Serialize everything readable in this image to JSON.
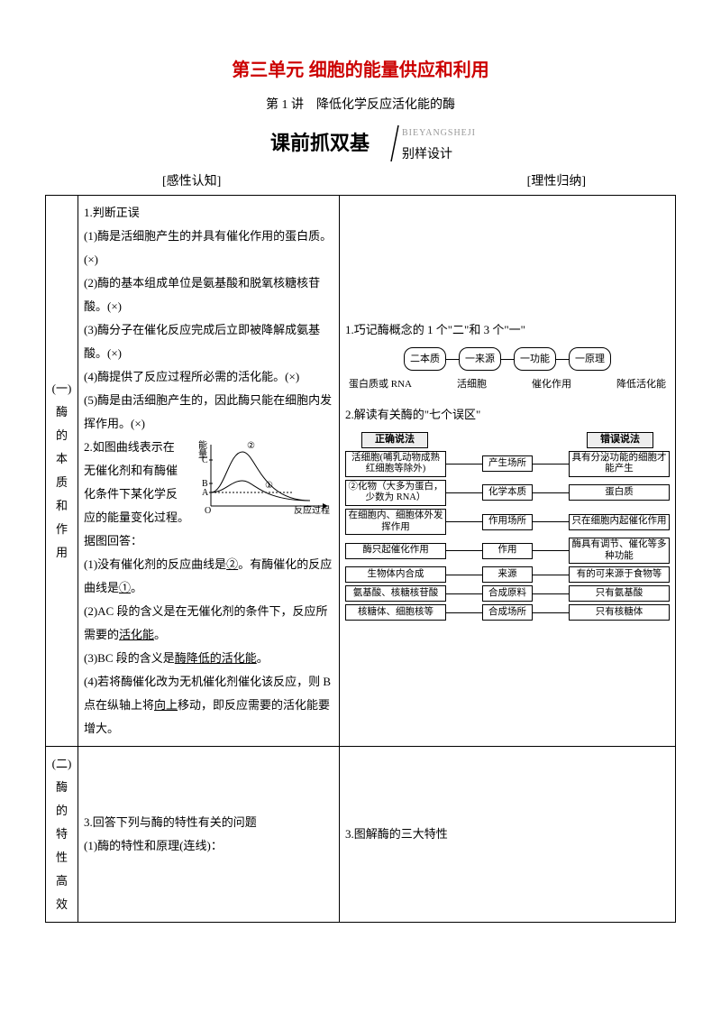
{
  "title": "第三单元  细胞的能量供应和利用",
  "subtitle": "第 1 讲　降低化学反应活化能的酶",
  "banner": {
    "main": "课前抓双基",
    "pinyin": "BIEYANGSHEJI",
    "sub": "别样设计"
  },
  "headers": {
    "left": "[感性认知]",
    "right": "[理性归纳]"
  },
  "row1": {
    "label": "(一)酶的本质和作用",
    "left": {
      "l1": "1.判断正误",
      "q1": "(1)酶是活细胞产生的并具有催化作用的蛋白质。(×)",
      "q2": "(2)酶的基本组成单位是氨基酸和脱氧核糖核苷酸。(×)",
      "q3": "(3)酶分子在催化反应完成后立即被降解成氨基酸。(×)",
      "q4": "(4)酶提供了反应过程所必需的活化能。(×)",
      "q5": "(5)酶是由活细胞产生的，因此酶只能在细胞内发挥作用。(×)",
      "l2a": "2.如图曲线表示在",
      "l2b": "无催化剂和有酶催",
      "l2c": "化条件下某化学反",
      "l2d": "应的能量变化过程。",
      "l3": "据图回答：",
      "a1a": "(1)没有催化剂的反应曲线是",
      "a1u": "②",
      "a1b": "。有酶催化的反应曲线是",
      "a1v": "①",
      "a1c": "。",
      "a2a": "(2)AC 段的含义是在无催化剂的条件下，反应所需要的",
      "a2u": "活化能",
      "a2b": "。",
      "a3a": "(3)BC 段的含义是",
      "a3u": "酶降低的活化能",
      "a3b": "。",
      "a4a": "(4)若将酶催化改为无机催化剂催化该反应，则 B 点在纵轴上将",
      "a4u": "向上",
      "a4b": "移动，即反应需要的活化能要增大。",
      "chart": {
        "ylabel": "能量",
        "xlabel": "反应过程",
        "labelsY": [
          "C",
          "B",
          "A"
        ],
        "ann1": "②",
        "ann2a": "②化物（大多为蛋",
        "ann2b": "白，少数为 RNA）",
        "ann3": "①",
        "origin": "O",
        "colors": {
          "axis": "#000",
          "curve": "#000"
        }
      }
    },
    "right": {
      "t1": "1.巧记酶概念的 1 个\"二\"和 3 个\"一\"",
      "chain": [
        "二本质",
        "一来源",
        "一功能",
        "一原理"
      ],
      "chainLabels": [
        "蛋白质或 RNA",
        "活细胞",
        "催化作用",
        "降低活化能"
      ],
      "t2": "2.解读有关酶的\"七个误区\"",
      "mis": {
        "h1": "正确说法",
        "h2": "错误说法",
        "rows": [
          {
            "l": "活细胞(哺乳动物成熟红细胞等除外)",
            "m": "产生场所",
            "r": "具有分泌功能的细胞才能产生"
          },
          {
            "l": "②化物（大多为蛋白，少数为 RNA）",
            "m": "化学本质",
            "r": "蛋白质"
          },
          {
            "l": "在细胞内、细胞体外发挥作用",
            "m": "作用场所",
            "r": "只在细胞内起催化作用"
          },
          {
            "l": "酶只起催化作用",
            "m": "作用",
            "r": "酶具有调节、催化等多种功能"
          },
          {
            "l": "生物体内合成",
            "m": "来源",
            "r": "有的可来源于食物等"
          },
          {
            "l": "氨基酸、核糖核苷酸",
            "m": "合成原料",
            "r": "只有氨基酸"
          },
          {
            "l": "核糖体、细胞核等",
            "m": "合成场所",
            "r": "只有核糖体"
          }
        ]
      }
    }
  },
  "row2": {
    "label": "(二)酶的特性高效",
    "left": {
      "l1": "3.回答下列与酶的特性有关的问题",
      "l2": "(1)酶的特性和原理(连线)："
    },
    "right": {
      "t1": "3.图解酶的三大特性"
    }
  }
}
